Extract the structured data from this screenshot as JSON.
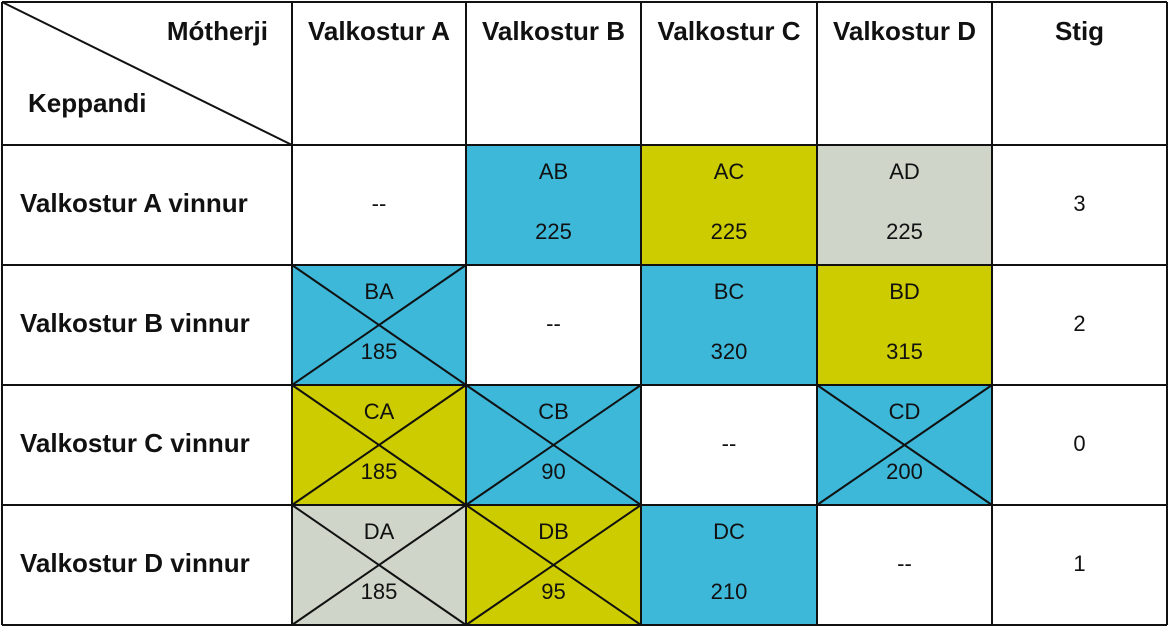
{
  "header": {
    "corner_top": "Mótherji",
    "corner_bottom": "Keppandi",
    "columns": [
      "Valkostur A",
      "Valkostur B",
      "Valkostur C",
      "Valkostur D",
      "Stig"
    ]
  },
  "rows": [
    {
      "label": "Valkostur A vinnur",
      "points": 3,
      "cells": [
        {
          "text": "--"
        },
        {
          "code": "AB",
          "value": 225,
          "color": "#3db8d9",
          "crossed": false
        },
        {
          "code": "AC",
          "value": 225,
          "color": "#cccc00",
          "crossed": false
        },
        {
          "code": "AD",
          "value": 225,
          "color": "#cfd6c9",
          "crossed": false
        }
      ]
    },
    {
      "label": "Valkostur B vinnur",
      "points": 2,
      "cells": [
        {
          "code": "BA",
          "value": 185,
          "color": "#3db8d9",
          "crossed": true
        },
        {
          "text": "--"
        },
        {
          "code": "BC",
          "value": 320,
          "color": "#3db8d9",
          "crossed": false
        },
        {
          "code": "BD",
          "value": 315,
          "color": "#cccc00",
          "crossed": false
        }
      ]
    },
    {
      "label": "Valkostur C vinnur",
      "points": 0,
      "cells": [
        {
          "code": "CA",
          "value": 185,
          "color": "#cccc00",
          "crossed": true
        },
        {
          "code": "CB",
          "value": 90,
          "color": "#3db8d9",
          "crossed": true
        },
        {
          "text": "--"
        },
        {
          "code": "CD",
          "value": 200,
          "color": "#3db8d9",
          "crossed": true
        }
      ]
    },
    {
      "label": "Valkostur D vinnur",
      "points": 1,
      "cells": [
        {
          "code": "DA",
          "value": 185,
          "color": "#cfd6c9",
          "crossed": true
        },
        {
          "code": "DB",
          "value": 95,
          "color": "#cccc00",
          "crossed": true
        },
        {
          "code": "DC",
          "value": 210,
          "color": "#3db8d9",
          "crossed": false
        },
        {
          "text": "--"
        }
      ]
    }
  ]
}
